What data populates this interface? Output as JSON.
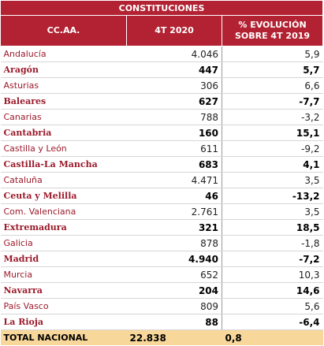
{
  "table": {
    "title": "CONSTITUCIONES",
    "headers": [
      "CC.AA.",
      "4T 2020",
      "% EVOLUCIÓN SOBRE 4T 2019"
    ],
    "rows": [
      {
        "region": "Andalucía",
        "value": "4.046",
        "change": "5,9",
        "bold": false
      },
      {
        "region": "Aragón",
        "value": "447",
        "change": "5,7",
        "bold": true
      },
      {
        "region": "Asturias",
        "value": "306",
        "change": "6,6",
        "bold": false
      },
      {
        "region": "Baleares",
        "value": "627",
        "change": "-7,7",
        "bold": true
      },
      {
        "region": "Canarias",
        "value": "788",
        "change": "-3,2",
        "bold": false
      },
      {
        "region": "Cantabria",
        "value": "160",
        "change": "15,1",
        "bold": true
      },
      {
        "region": "Castilla y León",
        "value": "611",
        "change": "-9,2",
        "bold": false
      },
      {
        "region": "Castilla-La Mancha",
        "value": "683",
        "change": "4,1",
        "bold": true
      },
      {
        "region": "Cataluña",
        "value": "4.471",
        "change": "3,5",
        "bold": false
      },
      {
        "region": "Ceuta y Melilla",
        "value": "46",
        "change": "-13,2",
        "bold": true
      },
      {
        "region": "Com. Valenciana",
        "value": "2.761",
        "change": "3,5",
        "bold": false
      },
      {
        "region": "Extremadura",
        "value": "321",
        "change": "18,5",
        "bold": true
      },
      {
        "region": "Galicia",
        "value": "878",
        "change": "-1,8",
        "bold": false
      },
      {
        "region": "Madrid",
        "value": "4.940",
        "change": "-7,2",
        "bold": true
      },
      {
        "region": "Murcia",
        "value": "652",
        "change": "10,3",
        "bold": false
      },
      {
        "region": "Navarra",
        "value": "204",
        "change": "14,6",
        "bold": true
      },
      {
        "region": "País Vasco",
        "value": "809",
        "change": "5,6",
        "bold": false
      },
      {
        "region": "La Rioja",
        "value": "88",
        "change": "-6,4",
        "bold": true
      }
    ],
    "total": {
      "region": "TOTAL NACIONAL",
      "value": "22.838",
      "change": "0,8"
    }
  }
}
